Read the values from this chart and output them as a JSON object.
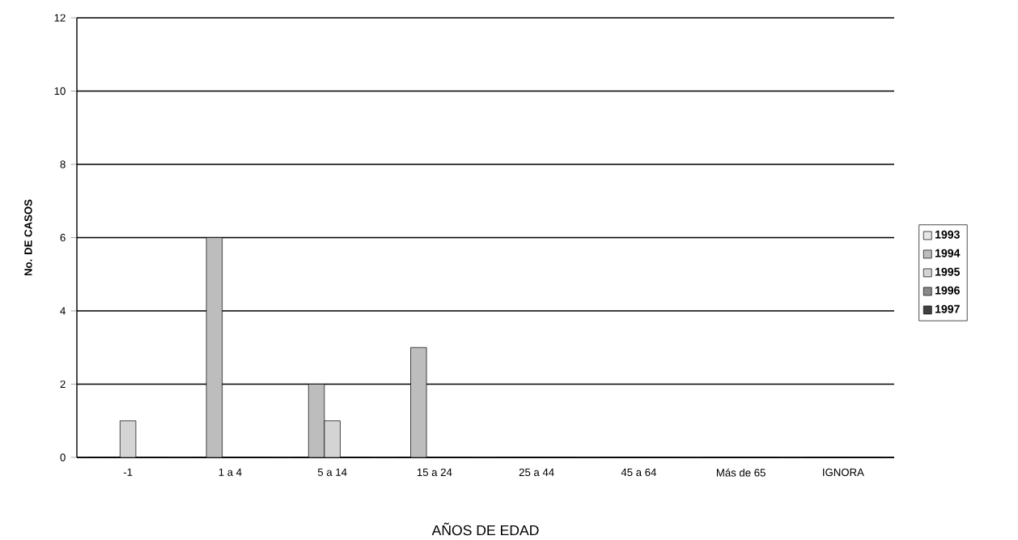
{
  "chart_data": {
    "type": "bar",
    "xlabel": "AÑOS DE EDAD",
    "ylabel": "No. DE CASOS",
    "categories": [
      "-1",
      "1 a 4",
      "5 a 14",
      "15 a 24",
      "25 a 44",
      "45 a 64",
      "Más de 65",
      "IGNORA"
    ],
    "series": [
      {
        "name": "1993",
        "color": "#e6e6e6",
        "values": [
          0,
          0,
          0,
          0,
          0,
          0,
          0,
          0
        ]
      },
      {
        "name": "1994",
        "color": "#bdbdbd",
        "values": [
          0,
          6,
          2,
          3,
          0,
          0,
          0,
          0
        ]
      },
      {
        "name": "1995",
        "color": "#d4d4d4",
        "values": [
          1,
          0,
          1,
          0,
          0,
          0,
          0,
          0
        ]
      },
      {
        "name": "1996",
        "color": "#8a8a8a",
        "values": [
          0,
          0,
          0,
          0,
          0,
          0,
          0,
          0
        ]
      },
      {
        "name": "1997",
        "color": "#404040",
        "values": [
          0,
          0,
          0,
          0,
          0,
          0,
          0,
          0
        ]
      }
    ],
    "ylim": [
      0,
      12
    ],
    "yticks": [
      0,
      2,
      4,
      6,
      8,
      10,
      12
    ],
    "grid": "y",
    "legend": "right"
  }
}
